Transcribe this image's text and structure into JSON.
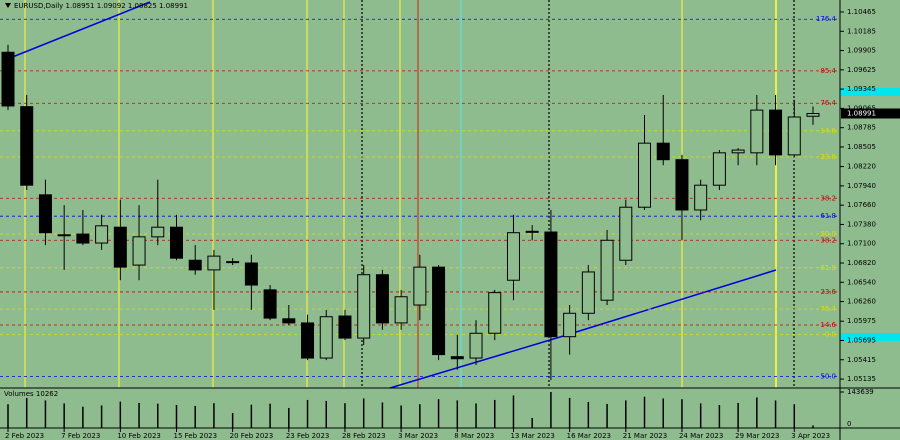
{
  "chart_data": {
    "type": "candlestick",
    "title": "EURUSD,Daily  1.08951 1.09092 1.08825 1.08991",
    "categories": [
      "2 Feb 2023",
      null,
      null,
      "7 Feb 2023",
      null,
      null,
      "10 Feb 2023",
      null,
      null,
      "15 Feb 2023",
      null,
      null,
      "20 Feb 2023",
      null,
      null,
      "23 Feb 2023",
      null,
      null,
      "28 Feb 2023",
      null,
      null,
      "3 Mar 2023",
      null,
      null,
      "8 Mar 2023",
      null,
      null,
      "13 Mar 2023",
      null,
      null,
      "16 Mar 2023",
      null,
      null,
      "21 Mar 2023",
      null,
      null,
      "24 Mar 2023",
      null,
      null,
      "29 Mar 2023",
      null,
      null,
      "3 Apr 2023",
      null
    ],
    "open": [
      1.0988,
      1.0909,
      1.0781,
      1.0723,
      1.0724,
      1.0711,
      1.0734,
      1.0679,
      1.072,
      1.0734,
      1.0686,
      1.0672,
      1.0684,
      1.0682,
      1.0643,
      1.0601,
      1.0595,
      1.0544,
      1.0605,
      1.0573,
      1.0665,
      1.0595,
      1.0621,
      1.0676,
      1.0546,
      1.0544,
      1.058,
      1.0657,
      1.0727,
      1.0727,
      1.0575,
      1.0609,
      1.0628,
      1.0686,
      1.0763,
      1.0856,
      1.0832,
      1.0759,
      1.0795,
      1.0842,
      1.0842,
      1.0904,
      1.0839,
      1.08951
    ],
    "high": [
      1.0999,
      1.0926,
      1.0803,
      1.0766,
      1.0759,
      1.0752,
      1.0774,
      1.0766,
      1.0803,
      1.0752,
      1.0708,
      1.0701,
      1.0689,
      1.0694,
      1.065,
      1.0621,
      1.0607,
      1.0614,
      1.0614,
      1.0679,
      1.0672,
      1.0643,
      1.0694,
      1.0679,
      1.0578,
      1.0599,
      1.0643,
      1.0752,
      1.0737,
      1.0759,
      1.0621,
      1.0679,
      1.073,
      1.0774,
      1.0897,
      1.0926,
      1.0839,
      1.0803,
      1.0846,
      1.0849,
      1.0926,
      1.0926,
      1.0919,
      1.09092
    ],
    "low": [
      1.0904,
      1.0788,
      1.0708,
      1.0672,
      1.0708,
      1.0701,
      1.0657,
      1.0657,
      1.0708,
      1.0686,
      1.0665,
      1.0614,
      1.0679,
      1.0614,
      1.0599,
      1.0592,
      1.0541,
      1.0541,
      1.057,
      1.0563,
      1.0585,
      1.0585,
      1.0599,
      1.0541,
      1.0527,
      1.0534,
      1.057,
      1.0628,
      1.0715,
      1.0512,
      1.0549,
      1.0599,
      1.0621,
      1.0679,
      1.0759,
      1.0824,
      1.0715,
      1.0744,
      1.0788,
      1.0824,
      1.0824,
      1.0824,
      1.0836,
      1.08825
    ],
    "close": [
      1.091,
      1.0795,
      1.0726,
      1.0722,
      1.0711,
      1.0736,
      1.0676,
      1.072,
      1.0734,
      1.0689,
      1.0672,
      1.0692,
      1.0683,
      1.065,
      1.0602,
      1.0595,
      1.0544,
      1.0604,
      1.0573,
      1.0665,
      1.0595,
      1.0633,
      1.0676,
      1.0549,
      1.0543,
      1.058,
      1.0639,
      1.0726,
      1.0728,
      1.0575,
      1.0609,
      1.0669,
      1.0715,
      1.0763,
      1.0856,
      1.0832,
      1.0759,
      1.0795,
      1.0842,
      1.0846,
      1.0904,
      1.0839,
      1.0894,
      1.08991
    ],
    "ylim": [
      1.05005,
      1.10639
    ],
    "yticks": [
      1.10465,
      1.10185,
      1.09905,
      1.09625,
      1.09345,
      1.09065,
      1.08785,
      1.08505,
      {
        "value": 1.0822,
        "label": "1.08220"
      },
      {
        "value": 1.0794,
        "label": "1.07940"
      },
      {
        "value": 1.0766,
        "label": "1.07660"
      },
      {
        "value": 1.0738,
        "label": "1.07380"
      },
      {
        "value": 1.071,
        "label": "1.07100"
      },
      {
        "value": 1.0682,
        "label": "1.06820"
      },
      {
        "value": 1.0654,
        "label": "1.06540"
      },
      {
        "value": 1.0626,
        "label": "1.06260"
      },
      1.05975,
      1.05695,
      1.05415,
      1.05135
    ],
    "levels": [
      {
        "value": 1.1036,
        "label": "176.4",
        "color": "#0000ff"
      },
      {
        "value": 1.0961,
        "label": "85.4",
        "color": "#d00000"
      },
      {
        "value": 1.0914,
        "label": "76.4",
        "color": "#d00000"
      },
      {
        "value": 1.0874,
        "label": "14.6",
        "color": "#dddd00"
      },
      {
        "value": 1.0836,
        "label": "23.6",
        "color": "#dddd00"
      },
      {
        "value": 1.0776,
        "label": "38.2",
        "color": "#d00000"
      },
      {
        "value": 1.075,
        "label": "61.8",
        "color": "#0000ff"
      },
      {
        "value": 1.0724,
        "label": "50.0",
        "color": "#dddd00"
      },
      {
        "value": 1.0715,
        "label": "38.2",
        "color": "#d00000"
      },
      {
        "value": 1.0675,
        "label": "61.8",
        "color": "#dddd00"
      },
      {
        "value": 1.064,
        "label": "23.6",
        "color": "#d00000"
      },
      {
        "value": 1.0615,
        "label": "76.4",
        "color": "#dddd00"
      },
      {
        "value": 1.0592,
        "label": "14.6",
        "color": "#d00000"
      },
      {
        "value": 1.0578,
        "label": "0.0",
        "color": "#dddd00"
      },
      {
        "value": 1.0517,
        "label": "50.0",
        "color": "#0000ff"
      }
    ],
    "volume_title": "Volumes 10262",
    "volumes": [
      95000,
      120000,
      110000,
      98000,
      85000,
      90000,
      105000,
      100000,
      97000,
      92000,
      88000,
      99000,
      60000,
      93000,
      97000,
      80000,
      112000,
      108000,
      99000,
      118000,
      102000,
      90000,
      95000,
      115000,
      110000,
      98000,
      112000,
      130000,
      40000,
      143639,
      120000,
      104000,
      96000,
      110000,
      125000,
      118000,
      115000,
      98000,
      92000,
      100000,
      122000,
      110000,
      95000,
      10262
    ],
    "volume_ylim": [
      0,
      143639
    ],
    "volume_yticks": [
      143639,
      0
    ]
  }
}
